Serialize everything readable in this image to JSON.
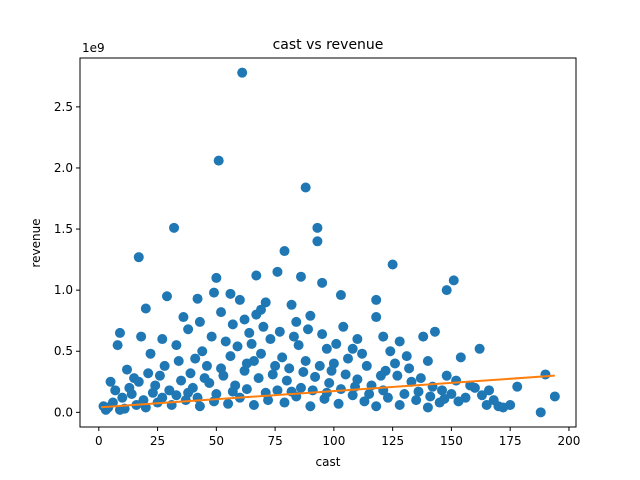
{
  "chart_data": {
    "type": "scatter",
    "title": "cast vs revenue",
    "xlabel": "cast",
    "ylabel": "revenue",
    "y_offset_label": "1e9",
    "xlim": [
      -8,
      203
    ],
    "ylim": [
      -0.12,
      2.9
    ],
    "x_ticks": [
      0,
      25,
      50,
      75,
      100,
      125,
      150,
      175,
      200
    ],
    "x_tick_labels": [
      "0",
      "25",
      "50",
      "75",
      "100",
      "125",
      "150",
      "175",
      "200"
    ],
    "y_ticks": [
      0.0,
      0.5,
      1.0,
      1.5,
      2.0,
      2.5
    ],
    "y_tick_labels": [
      "0.0",
      "0.5",
      "1.0",
      "1.5",
      "2.0",
      "2.5"
    ],
    "grid": false,
    "colors": {
      "points": "#1f77b4",
      "trend": "#ff7f0e"
    },
    "series": [
      {
        "kind": "points",
        "points": [
          [
            61,
            2.78
          ],
          [
            51,
            2.06
          ],
          [
            88,
            1.84
          ],
          [
            32,
            1.51
          ],
          [
            93,
            1.51
          ],
          [
            93,
            1.4
          ],
          [
            17,
            1.27
          ],
          [
            79,
            1.32
          ],
          [
            125,
            1.21
          ],
          [
            76,
            1.15
          ],
          [
            86,
            1.11
          ],
          [
            67,
            1.12
          ],
          [
            50,
            1.1
          ],
          [
            151,
            1.08
          ],
          [
            95,
            1.06
          ],
          [
            148,
            1.0
          ],
          [
            49,
            0.98
          ],
          [
            56,
            0.97
          ],
          [
            29,
            0.95
          ],
          [
            42,
            0.93
          ],
          [
            60,
            0.92
          ],
          [
            71,
            0.9
          ],
          [
            82,
            0.88
          ],
          [
            103,
            0.96
          ],
          [
            118,
            0.92
          ],
          [
            20,
            0.85
          ],
          [
            67,
            0.8
          ],
          [
            90,
            0.79
          ],
          [
            36,
            0.78
          ],
          [
            104,
            0.7
          ],
          [
            118,
            0.78
          ],
          [
            9,
            0.65
          ],
          [
            18,
            0.62
          ],
          [
            27,
            0.6
          ],
          [
            143,
            0.66
          ],
          [
            138,
            0.62
          ],
          [
            128,
            0.58
          ],
          [
            110,
            0.6
          ],
          [
            121,
            0.62
          ],
          [
            162,
            0.52
          ],
          [
            154,
            0.45
          ],
          [
            140,
            0.42
          ],
          [
            131,
            0.46
          ],
          [
            5,
            0.25
          ],
          [
            8,
            0.55
          ],
          [
            12,
            0.35
          ],
          [
            22,
            0.48
          ],
          [
            33,
            0.55
          ],
          [
            44,
            0.5
          ],
          [
            57,
            0.72
          ],
          [
            64,
            0.65
          ],
          [
            73,
            0.6
          ],
          [
            85,
            0.55
          ],
          [
            97,
            0.52
          ],
          [
            112,
            0.48
          ],
          [
            100,
            0.4
          ],
          [
            78,
            0.45
          ],
          [
            66,
            0.42
          ],
          [
            46,
            0.38
          ],
          [
            39,
            0.32
          ],
          [
            26,
            0.3
          ],
          [
            15,
            0.28
          ],
          [
            7,
            0.18
          ],
          [
            3,
            0.02
          ],
          [
            2,
            0.05
          ],
          [
            6,
            0.08
          ],
          [
            10,
            0.12
          ],
          [
            14,
            0.15
          ],
          [
            19,
            0.1
          ],
          [
            24,
            0.22
          ],
          [
            30,
            0.18
          ],
          [
            35,
            0.26
          ],
          [
            40,
            0.2
          ],
          [
            47,
            0.24
          ],
          [
            53,
            0.3
          ],
          [
            58,
            0.22
          ],
          [
            62,
            0.34
          ],
          [
            68,
            0.28
          ],
          [
            74,
            0.31
          ],
          [
            80,
            0.26
          ],
          [
            87,
            0.33
          ],
          [
            92,
            0.29
          ],
          [
            98,
            0.24
          ],
          [
            105,
            0.31
          ],
          [
            110,
            0.27
          ],
          [
            116,
            0.22
          ],
          [
            122,
            0.34
          ],
          [
            127,
            0.3
          ],
          [
            133,
            0.25
          ],
          [
            137,
            0.28
          ],
          [
            142,
            0.21
          ],
          [
            146,
            0.18
          ],
          [
            150,
            0.15
          ],
          [
            156,
            0.12
          ],
          [
            160,
            0.2
          ],
          [
            166,
            0.18
          ],
          [
            170,
            0.05
          ],
          [
            172,
            0.04
          ],
          [
            175,
            0.06
          ],
          [
            178,
            0.21
          ],
          [
            188,
            0.0
          ],
          [
            190,
            0.31
          ],
          [
            194,
            0.13
          ],
          [
            163,
            0.14
          ],
          [
            168,
            0.1
          ],
          [
            145,
            0.08
          ],
          [
            140,
            0.04
          ],
          [
            135,
            0.1
          ],
          [
            128,
            0.06
          ],
          [
            123,
            0.12
          ],
          [
            118,
            0.05
          ],
          [
            113,
            0.09
          ],
          [
            108,
            0.14
          ],
          [
            102,
            0.07
          ],
          [
            96,
            0.11
          ],
          [
            90,
            0.05
          ],
          [
            84,
            0.13
          ],
          [
            79,
            0.08
          ],
          [
            72,
            0.1
          ],
          [
            66,
            0.06
          ],
          [
            60,
            0.12
          ],
          [
            55,
            0.07
          ],
          [
            49,
            0.09
          ],
          [
            43,
            0.05
          ],
          [
            37,
            0.1
          ],
          [
            31,
            0.06
          ],
          [
            25,
            0.08
          ],
          [
            20,
            0.04
          ],
          [
            16,
            0.06
          ],
          [
            11,
            0.03
          ],
          [
            9,
            0.02
          ],
          [
            4,
            0.04
          ],
          [
            13,
            0.2
          ],
          [
            17,
            0.25
          ],
          [
            21,
            0.32
          ],
          [
            28,
            0.38
          ],
          [
            34,
            0.42
          ],
          [
            41,
            0.44
          ],
          [
            45,
            0.28
          ],
          [
            52,
            0.36
          ],
          [
            56,
            0.46
          ],
          [
            63,
            0.4
          ],
          [
            69,
            0.48
          ],
          [
            75,
            0.38
          ],
          [
            81,
            0.36
          ],
          [
            88,
            0.42
          ],
          [
            94,
            0.38
          ],
          [
            99,
            0.34
          ],
          [
            106,
            0.44
          ],
          [
            114,
            0.38
          ],
          [
            120,
            0.3
          ],
          [
            126,
            0.4
          ],
          [
            132,
            0.36
          ],
          [
            148,
            0.3
          ],
          [
            152,
            0.26
          ],
          [
            158,
            0.22
          ],
          [
            48,
            0.62
          ],
          [
            54,
            0.58
          ],
          [
            59,
            0.54
          ],
          [
            65,
            0.56
          ],
          [
            70,
            0.7
          ],
          [
            77,
            0.66
          ],
          [
            83,
            0.62
          ],
          [
            89,
            0.68
          ],
          [
            95,
            0.64
          ],
          [
            101,
            0.56
          ],
          [
            108,
            0.52
          ],
          [
            124,
            0.5
          ],
          [
            38,
            0.68
          ],
          [
            43,
            0.74
          ],
          [
            52,
            0.82
          ],
          [
            62,
            0.76
          ],
          [
            69,
            0.84
          ],
          [
            84,
            0.74
          ],
          [
            23,
            0.16
          ],
          [
            27,
            0.12
          ],
          [
            33,
            0.14
          ],
          [
            38,
            0.16
          ],
          [
            42,
            0.12
          ],
          [
            50,
            0.15
          ],
          [
            57,
            0.17
          ],
          [
            63,
            0.19
          ],
          [
            71,
            0.16
          ],
          [
            76,
            0.18
          ],
          [
            82,
            0.17
          ],
          [
            86,
            0.2
          ],
          [
            91,
            0.18
          ],
          [
            97,
            0.16
          ],
          [
            103,
            0.19
          ],
          [
            109,
            0.21
          ],
          [
            115,
            0.15
          ],
          [
            121,
            0.18
          ],
          [
            130,
            0.15
          ],
          [
            136,
            0.17
          ],
          [
            141,
            0.13
          ],
          [
            147,
            0.11
          ],
          [
            153,
            0.09
          ],
          [
            165,
            0.06
          ]
        ]
      },
      {
        "kind": "trend",
        "points": [
          [
            1,
            0.042
          ],
          [
            194,
            0.3
          ]
        ]
      }
    ]
  }
}
